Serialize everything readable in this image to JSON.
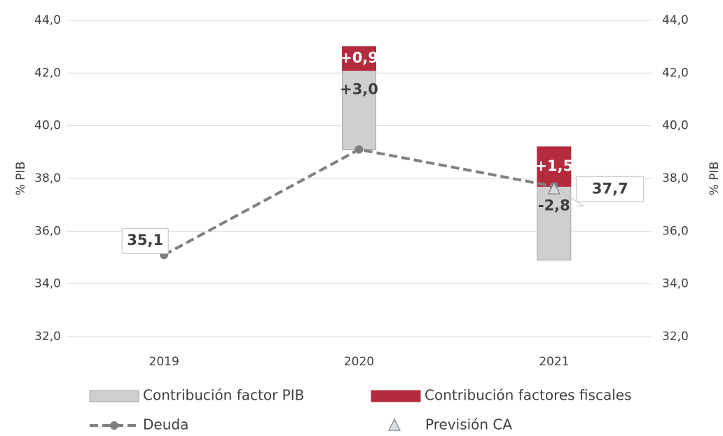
{
  "chart_data": {
    "type": "bar",
    "y_label": "% PIB",
    "y2_label": "% PIB",
    "categories": [
      "2019",
      "2020",
      "2021"
    ],
    "ylim": [
      32,
      44
    ],
    "yticks": [
      {
        "value": 32,
        "label": "32,0"
      },
      {
        "value": 34,
        "label": "34,0"
      },
      {
        "value": 36,
        "label": "36,0"
      },
      {
        "value": 38,
        "label": "38,0"
      },
      {
        "value": 40,
        "label": "40,0"
      },
      {
        "value": 42,
        "label": "42,0"
      },
      {
        "value": 44,
        "label": "44,0"
      }
    ],
    "y2lim": [
      32,
      44
    ],
    "y2ticks": [
      {
        "value": 32,
        "label": "32,0"
      },
      {
        "value": 34,
        "label": "34,0"
      },
      {
        "value": 36,
        "label": "36,0"
      },
      {
        "value": 38,
        "label": "38,0"
      },
      {
        "value": 40,
        "label": "40,0"
      },
      {
        "value": 42,
        "label": "42,0"
      },
      {
        "value": 44,
        "label": "44,0"
      }
    ],
    "grid": true,
    "series": [
      {
        "name": "Contribución factor PIB",
        "type": "bar",
        "color": "#d0cece",
        "values": [
          null,
          3.0,
          -2.8
        ],
        "value_labels": [
          null,
          "+3,0",
          "-2,8"
        ]
      },
      {
        "name": "Contribución factores fiscales",
        "type": "bar",
        "color": "#b52b3e",
        "values": [
          null,
          0.9,
          1.5
        ],
        "value_labels": [
          null,
          "+0,9",
          "+1,5"
        ]
      },
      {
        "name": "Deuda",
        "type": "line",
        "color": "#7f7f7f",
        "values": [
          35.1,
          39.1,
          37.7
        ],
        "value_labels": [
          "35,1",
          null,
          "37,7"
        ]
      },
      {
        "name": "Previsión CA",
        "type": "scatter",
        "marker": "triangle",
        "color": "#d6dae3",
        "values": [
          null,
          null,
          37.6
        ]
      }
    ]
  }
}
